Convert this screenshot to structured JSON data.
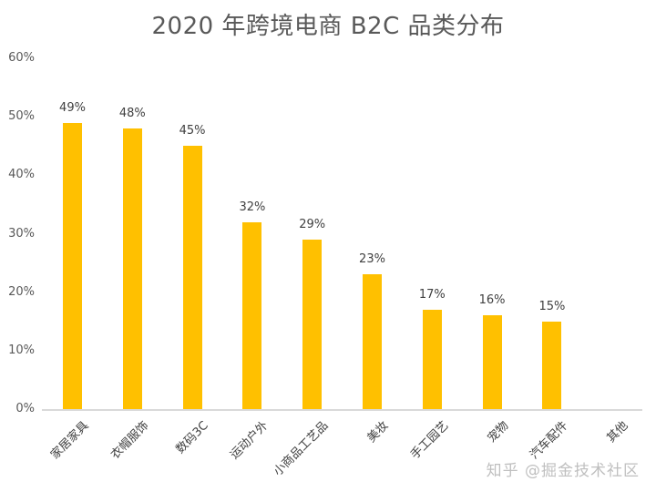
{
  "chart_data": {
    "type": "bar",
    "title": "2020 年跨境电商 B2C 品类分布",
    "xlabel": "",
    "ylabel": "",
    "categories": [
      "家居家具",
      "衣帽服饰",
      "数码3C",
      "运动户外",
      "小商品工艺品",
      "美妆",
      "手工园艺",
      "宠物",
      "汽车配件",
      "其他"
    ],
    "values": [
      49,
      48,
      45,
      32,
      29,
      23,
      17,
      16,
      15,
      0
    ],
    "data_labels": [
      "49%",
      "48%",
      "45%",
      "32%",
      "29%",
      "23%",
      "17%",
      "16%",
      "15%",
      ""
    ],
    "ylim": [
      0,
      60
    ],
    "yticks": [
      "0%",
      "10%",
      "20%",
      "30%",
      "40%",
      "50%",
      "60%"
    ],
    "grid": false,
    "legend": null,
    "bar_color": "#ffc000",
    "unit": "%"
  },
  "watermark": "知乎 @掘金技术社区"
}
